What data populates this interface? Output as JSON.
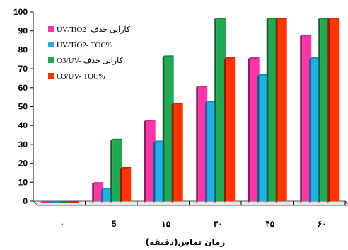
{
  "chart_data": {
    "type": "bar",
    "title": "",
    "xlabel": "زمان تماس(دقیقه)",
    "ylabel": "",
    "ylim": [
      0,
      100
    ],
    "yticks": [
      0,
      10,
      20,
      30,
      40,
      50,
      60,
      70,
      80,
      90,
      100
    ],
    "categories": [
      "۰",
      "5",
      "۱۵",
      "۳۰",
      "۴۵",
      "۶۰"
    ],
    "grid": false,
    "legend_position": "top-left",
    "series": [
      {
        "name": "UV/TiO2- کارایی حذف",
        "color": "#ff33aa",
        "values": [
          0,
          10,
          43,
          61,
          76,
          88
        ]
      },
      {
        "name": "UV/TiO2- TOC%",
        "color": "#1ab2ea",
        "values": [
          0,
          7,
          32,
          53,
          67,
          76
        ]
      },
      {
        "name": "O3/UV- کارایی حذف",
        "color": "#1eaa50",
        "values": [
          0,
          33,
          77,
          97,
          97,
          97
        ]
      },
      {
        "name": "O3/UV- TOC%",
        "color": "#ff3300",
        "values": [
          0,
          18,
          52,
          76,
          97,
          97
        ]
      }
    ]
  }
}
